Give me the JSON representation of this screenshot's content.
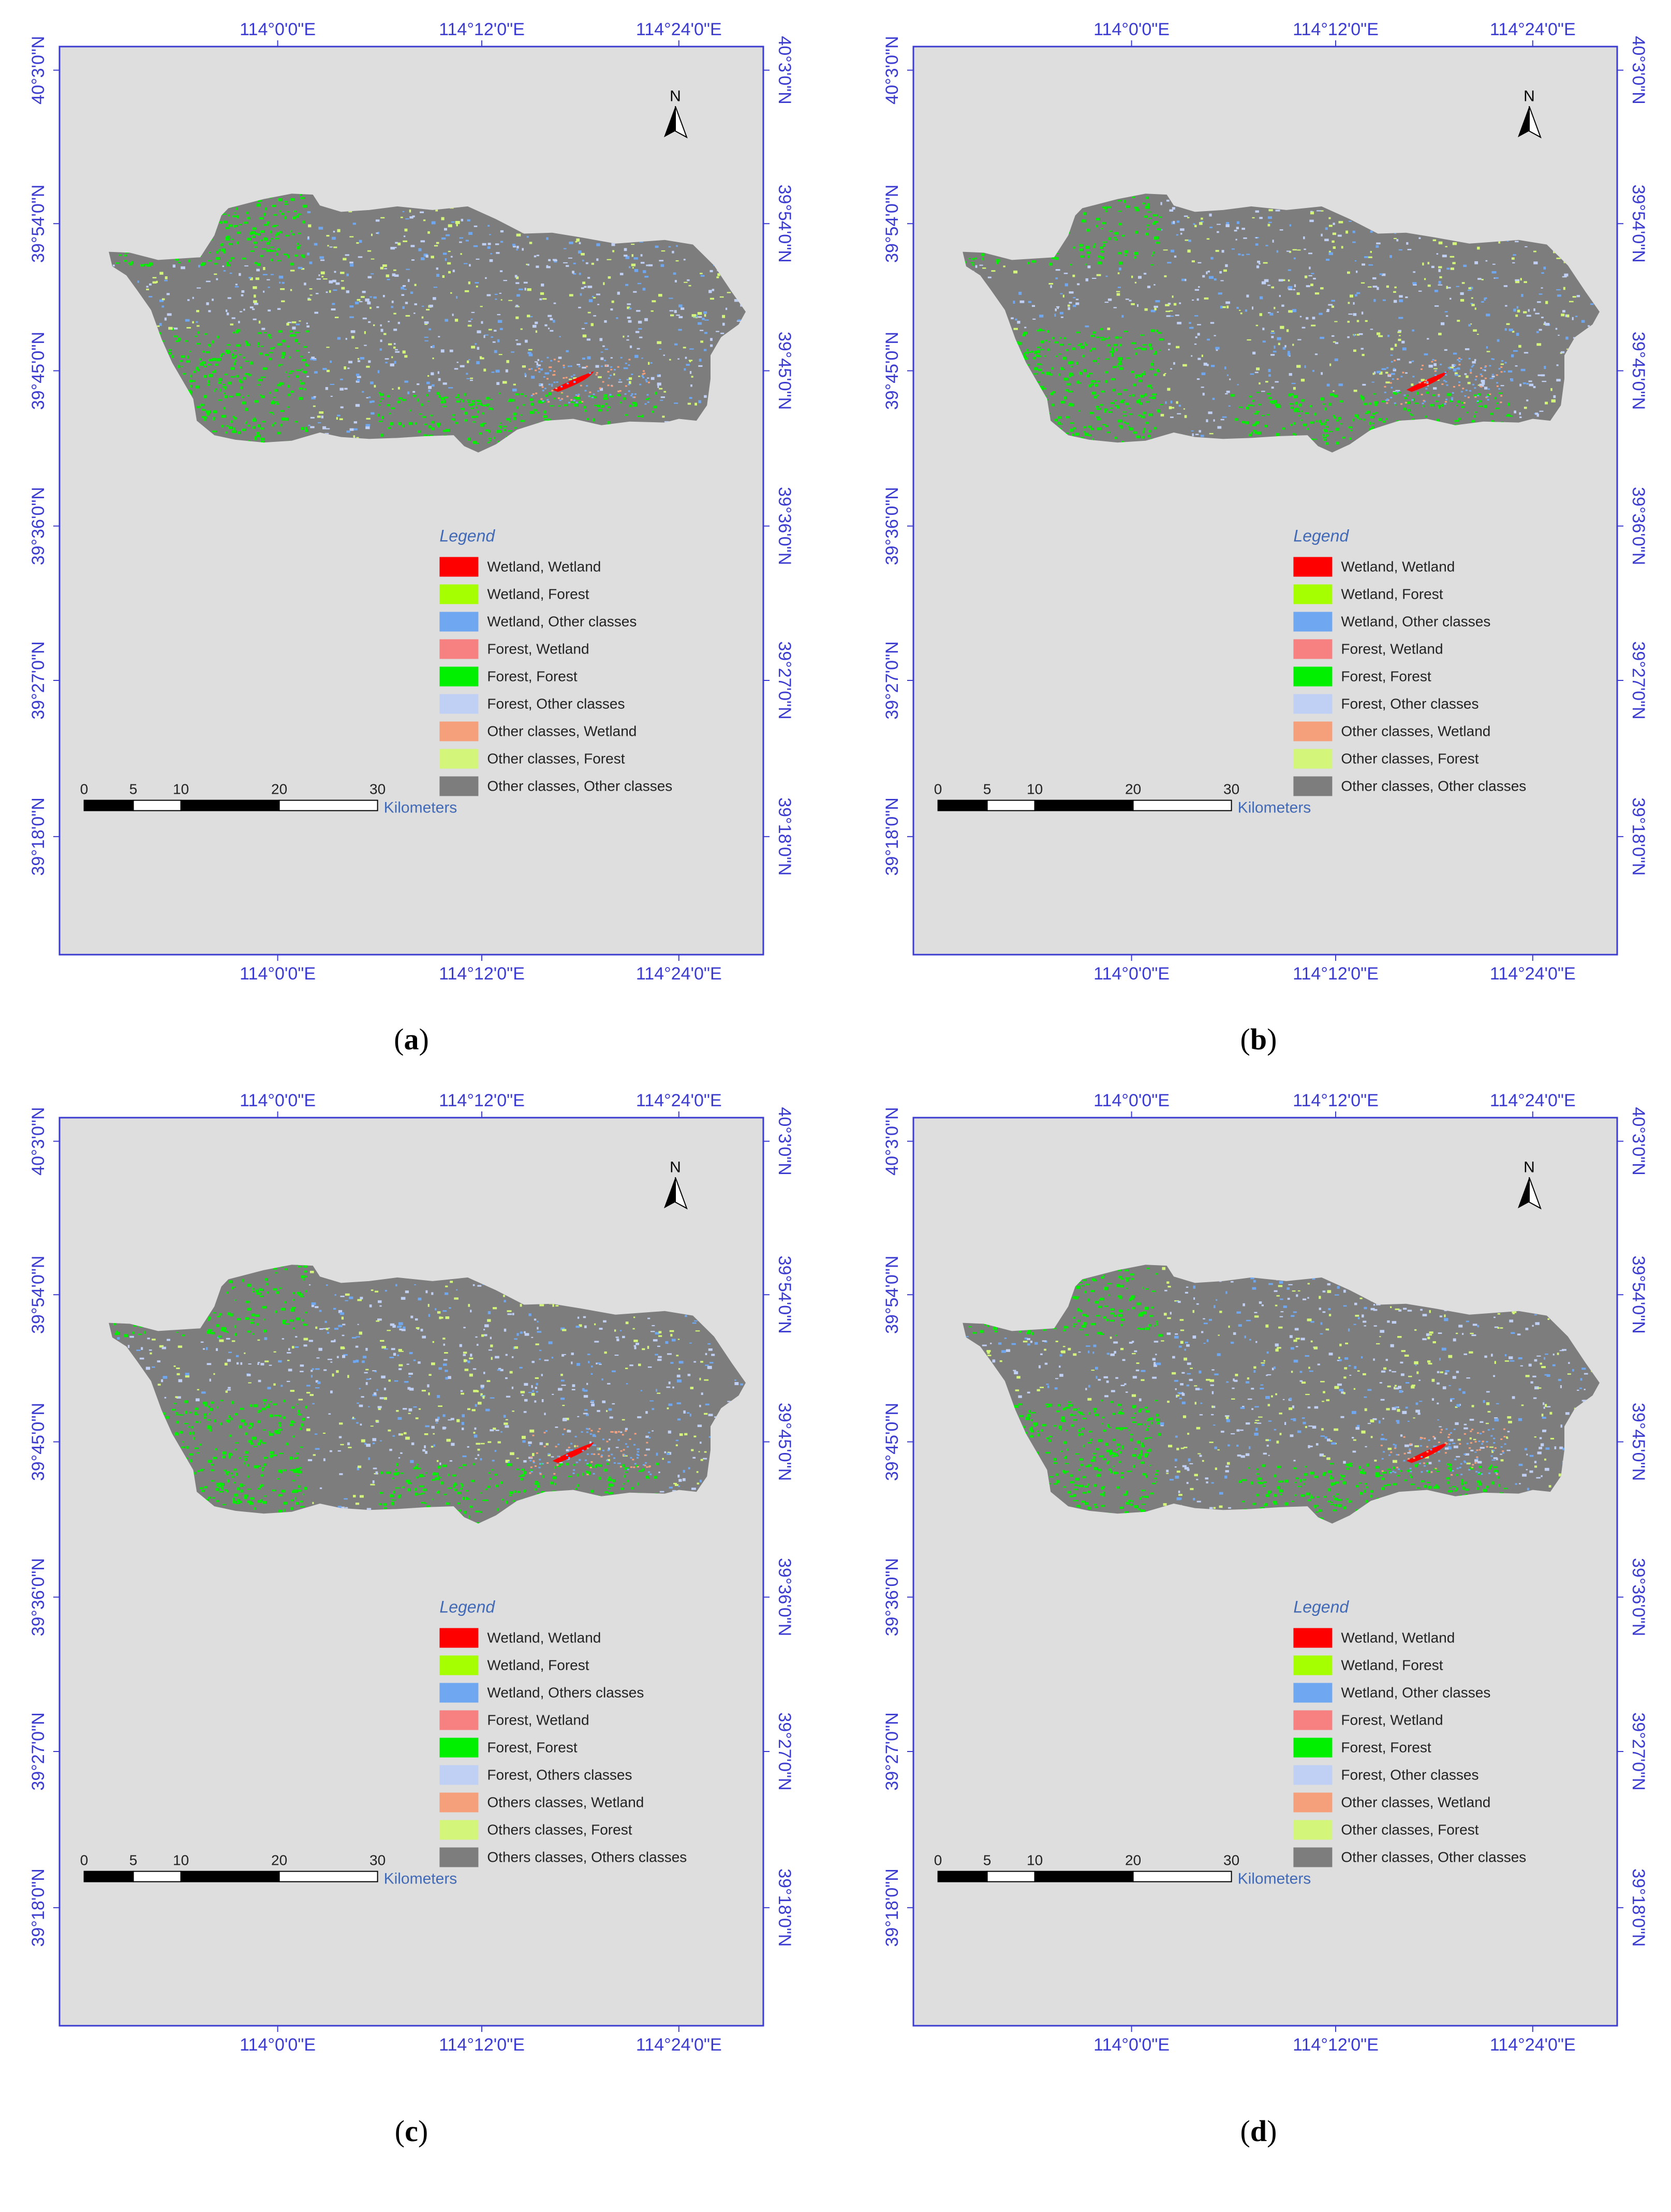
{
  "colors": {
    "map_background": "#dedede",
    "frame": "#3b3bd0",
    "coord_text": "#3b3bd0",
    "legend_title": "#4169b5",
    "terrain_base": "#7d7d7d"
  },
  "panels": [
    {
      "id": "a",
      "caption_letter": "a",
      "top_labels": [
        "114°0'0\"E",
        "114°12'0\"E",
        "114°24'0\"E"
      ],
      "bottom_labels": [
        "114°0'0\"E",
        "114°12'0\"E",
        "114°24'0\"E"
      ],
      "left_labels": [
        "40°3'0\"N",
        "39°54'0\"N",
        "39°45'0\"N",
        "39°36'0\"N",
        "39°27'0\"N",
        "39°18'0\"N"
      ],
      "right_labels": [
        "40°3'0\"N",
        "39°54'0\"N",
        "39°45'0\"N",
        "39°36'0\"N",
        "39°27'0\"N",
        "39°18'0\"N"
      ],
      "north_label": "N",
      "legend_title": "Legend",
      "legend_items": [
        {
          "label": "Wetland, Wetland",
          "color": "#ff0000"
        },
        {
          "label": "Wetland, Forest",
          "color": "#a6ff00"
        },
        {
          "label": "Wetland, Other classes",
          "color": "#6fa8f0"
        },
        {
          "label": "Forest, Wetland",
          "color": "#f78080"
        },
        {
          "label": "Forest, Forest",
          "color": "#00f000"
        },
        {
          "label": "Forest, Other classes",
          "color": "#c0d0f5"
        },
        {
          "label": "Other classes, Wetland",
          "color": "#f5a07a"
        },
        {
          "label": "Other classes, Forest",
          "color": "#d2f57a"
        },
        {
          "label": "Other classes, Other classes",
          "color": "#7d7d7d"
        }
      ],
      "scale_ticks": [
        "0",
        "5",
        "10",
        "20",
        "30"
      ],
      "scale_unit": "Kilometers"
    },
    {
      "id": "b",
      "caption_letter": "b",
      "top_labels": [
        "114°0'0\"E",
        "114°12'0\"E",
        "114°24'0\"E"
      ],
      "bottom_labels": [
        "114°0'0\"E",
        "114°12'0\"E",
        "114°24'0\"E"
      ],
      "left_labels": [
        "40°3'0\"N",
        "39°54'0\"N",
        "39°45'0\"N",
        "39°36'0\"N",
        "39°27'0\"N",
        "39°18'0\"N"
      ],
      "right_labels": [
        "40°3'0\"N",
        "39°54'0\"N",
        "39°45'0\"N",
        "39°36'0\"N",
        "39°27'0\"N",
        "39°18'0\"N"
      ],
      "north_label": "N",
      "legend_title": "Legend",
      "legend_items": [
        {
          "label": "Wetland, Wetland",
          "color": "#ff0000"
        },
        {
          "label": "Wetland, Forest",
          "color": "#a6ff00"
        },
        {
          "label": "Wetland, Other classes",
          "color": "#6fa8f0"
        },
        {
          "label": "Forest, Wetland",
          "color": "#f78080"
        },
        {
          "label": "Forest, Forest",
          "color": "#00f000"
        },
        {
          "label": "Forest, Other classes",
          "color": "#c0d0f5"
        },
        {
          "label": "Other classes, Wetland",
          "color": "#f5a07a"
        },
        {
          "label": "Other classes, Forest",
          "color": "#d2f57a"
        },
        {
          "label": "Other classes, Other classes",
          "color": "#7d7d7d"
        }
      ],
      "scale_ticks": [
        "0",
        "5",
        "10",
        "20",
        "30"
      ],
      "scale_unit": "Kilometers"
    },
    {
      "id": "c",
      "caption_letter": "c",
      "top_labels": [
        "114°0'0\"E",
        "114°12'0\"E",
        "114°24'0\"E"
      ],
      "bottom_labels": [
        "114°0'0\"E",
        "114°12'0\"E",
        "114°24'0\"E"
      ],
      "left_labels": [
        "40°3'0\"N",
        "39°54'0\"N",
        "39°45'0\"N",
        "39°36'0\"N",
        "39°27'0\"N",
        "39°18'0\"N"
      ],
      "right_labels": [
        "40°3'0\"N",
        "39°54'0\"N",
        "39°45'0\"N",
        "39°36'0\"N",
        "39°27'0\"N",
        "39°18'0\"N"
      ],
      "north_label": "N",
      "legend_title": "Legend",
      "legend_items": [
        {
          "label": "Wetland, Wetland",
          "color": "#ff0000"
        },
        {
          "label": "Wetland, Forest",
          "color": "#a6ff00"
        },
        {
          "label": "Wetland, Others classes",
          "color": "#6fa8f0"
        },
        {
          "label": "Forest, Wetland",
          "color": "#f78080"
        },
        {
          "label": "Forest, Forest",
          "color": "#00f000"
        },
        {
          "label": "Forest, Others classes",
          "color": "#c0d0f5"
        },
        {
          "label": "Others classes, Wetland",
          "color": "#f5a07a"
        },
        {
          "label": "Others classes, Forest",
          "color": "#d2f57a"
        },
        {
          "label": "Others classes, Others classes",
          "color": "#7d7d7d"
        }
      ],
      "scale_ticks": [
        "0",
        "5",
        "10",
        "20",
        "30"
      ],
      "scale_unit": "Kilometers"
    },
    {
      "id": "d",
      "caption_letter": "d",
      "top_labels": [
        "114°0'0\"E",
        "114°12'0\"E",
        "114°24'0\"E"
      ],
      "bottom_labels": [
        "114°0'0\"E",
        "114°12'0\"E",
        "114°24'0\"E"
      ],
      "left_labels": [
        "40°3'0\"N",
        "39°54'0\"N",
        "39°45'0\"N",
        "39°36'0\"N",
        "39°27'0\"N",
        "39°18'0\"N"
      ],
      "right_labels": [
        "40°3'0\"N",
        "39°54'0\"N",
        "39°45'0\"N",
        "39°36'0\"N",
        "39°27'0\"N",
        "39°18'0\"N"
      ],
      "north_label": "N",
      "legend_title": "Legend",
      "legend_items": [
        {
          "label": "Wetland, Wetland",
          "color": "#ff0000"
        },
        {
          "label": "Wetland, Forest",
          "color": "#a6ff00"
        },
        {
          "label": "Wetland, Other classes",
          "color": "#6fa8f0"
        },
        {
          "label": "Forest, Wetland",
          "color": "#f78080"
        },
        {
          "label": "Forest, Forest",
          "color": "#00f000"
        },
        {
          "label": "Forest, Other classes",
          "color": "#c0d0f5"
        },
        {
          "label": "Other classes, Wetland",
          "color": "#f5a07a"
        },
        {
          "label": "Other classes, Forest",
          "color": "#d2f57a"
        },
        {
          "label": "Other classes, Other classes",
          "color": "#7d7d7d"
        }
      ],
      "scale_ticks": [
        "0",
        "5",
        "10",
        "20",
        "30"
      ],
      "scale_unit": "Kilometers"
    }
  ]
}
